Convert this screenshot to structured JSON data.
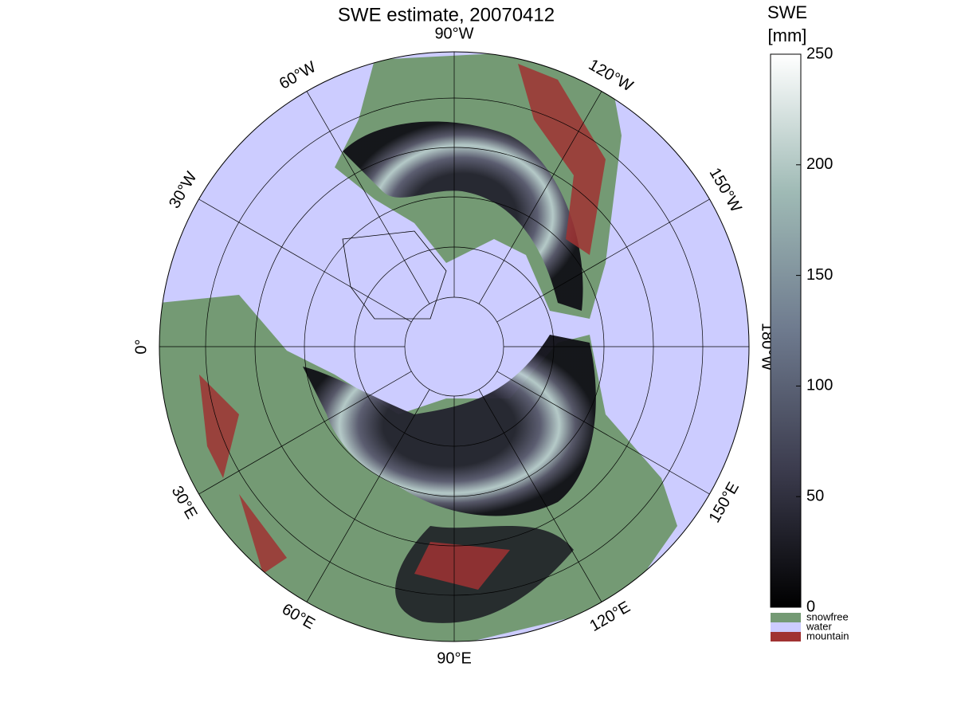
{
  "map": {
    "title": "SWE estimate, 20070412",
    "meridian_labels": [
      "90°W",
      "120°W",
      "150°W",
      "180°W",
      "150°E",
      "120°E",
      "90°E",
      "60°E",
      "30°E",
      "0°",
      "30°W",
      "60°W"
    ],
    "colorbar": {
      "label": [
        "SWE",
        "[mm]"
      ],
      "lim": [
        0,
        250
      ],
      "ticks": [
        0,
        50,
        100,
        150,
        200,
        250
      ]
    },
    "legend": [
      {
        "name": "snowfree",
        "color": "#749a74"
      },
      {
        "name": "water",
        "color": "#ccccff"
      },
      {
        "name": "mountain",
        "color": "#a03232"
      }
    ]
  }
}
